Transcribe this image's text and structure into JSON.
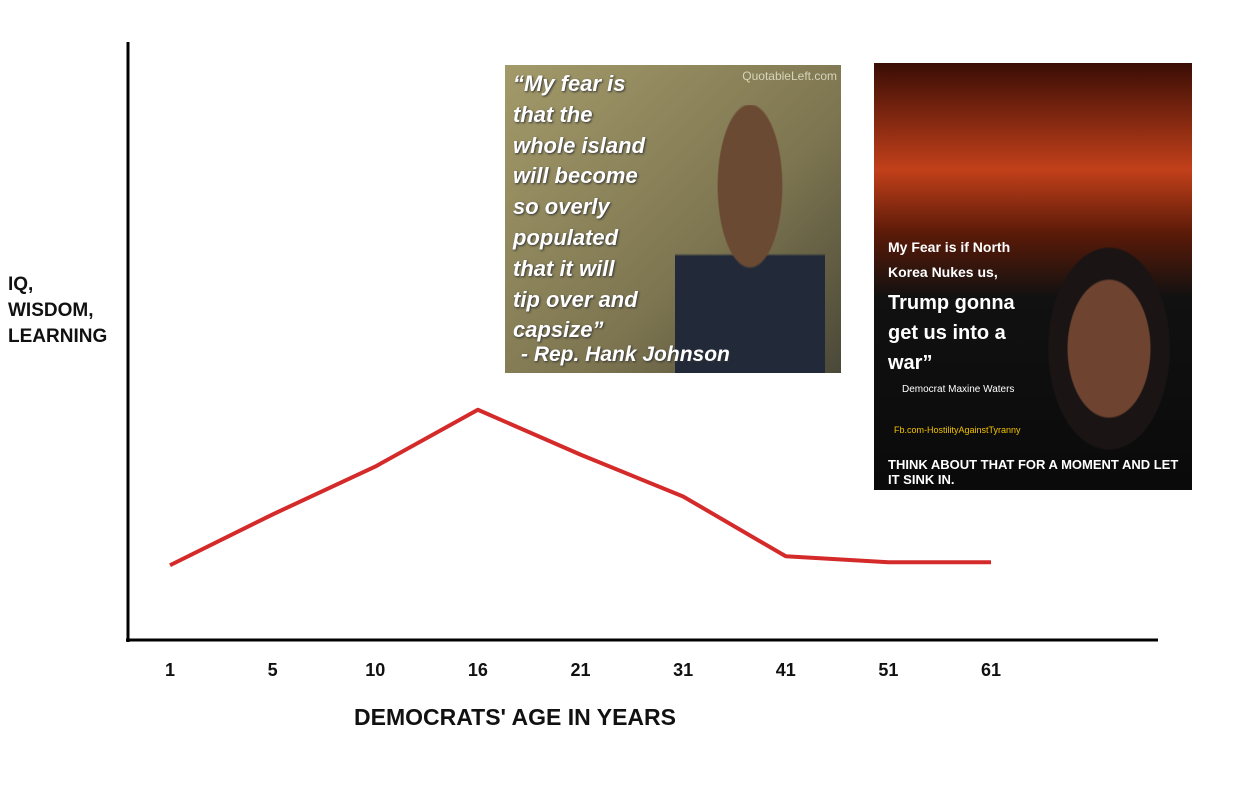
{
  "chart_data": {
    "type": "line",
    "y_label": [
      "IQ,",
      "WISDOM,",
      "LEARNING"
    ],
    "x_label": "DEMOCRATS' AGE IN YEARS",
    "categories": [
      "1",
      "5",
      "10",
      "16",
      "21",
      "31",
      "41",
      "51",
      "61"
    ],
    "values": [
      12.5,
      21,
      29,
      38.5,
      31,
      24,
      14,
      13,
      13
    ],
    "color": "#d42a2a",
    "ylim": [
      0,
      100
    ],
    "images": [
      {
        "quote": [
          "“My fear is",
          "that the",
          "whole island",
          "will become",
          "so overly",
          "populated",
          "that it will",
          "tip over and",
          "capsize”"
        ],
        "author": "- Rep. Hank Johnson",
        "source": "QuotableLeft.com"
      },
      {
        "quote": [
          "My Fear is if North",
          "Korea Nukes us,"
        ],
        "headline": [
          "Trump gonna",
          "get us into a",
          "war”"
        ],
        "author": "Democrat Maxine Waters",
        "source": "Fb.com-HostilityAgainstTyranny",
        "footer": "THINK ABOUT THAT FOR A MOMENT AND LET IT SINK IN."
      }
    ]
  }
}
